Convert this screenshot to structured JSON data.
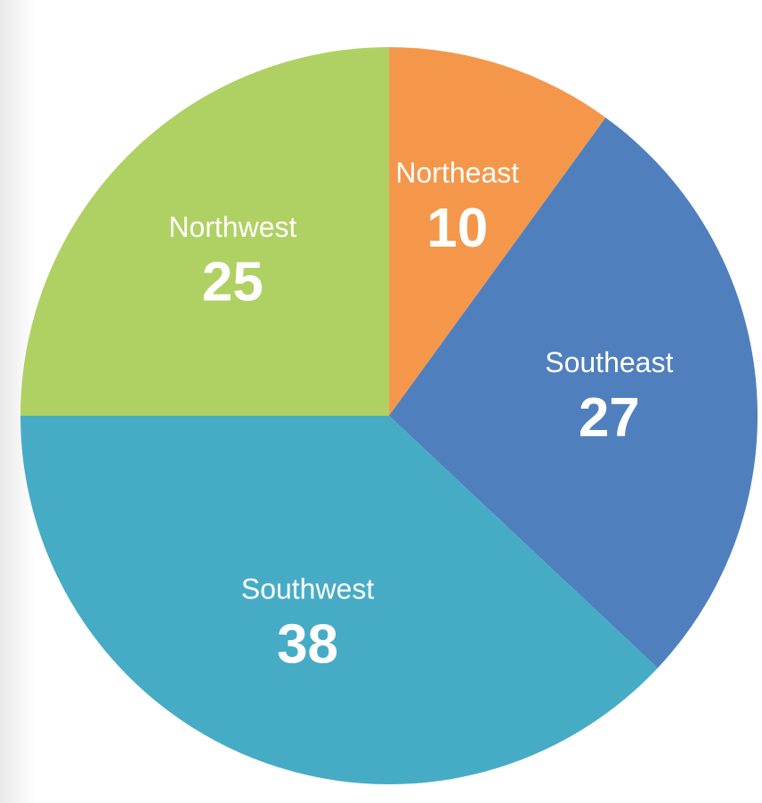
{
  "chart_data": {
    "type": "pie",
    "categories": [
      "Northeast",
      "Southeast",
      "Southwest",
      "Northwest"
    ],
    "values": [
      10,
      27,
      38,
      25
    ],
    "colors": [
      "#f5974a",
      "#4f80bd",
      "#46acc6",
      "#afd163"
    ]
  }
}
